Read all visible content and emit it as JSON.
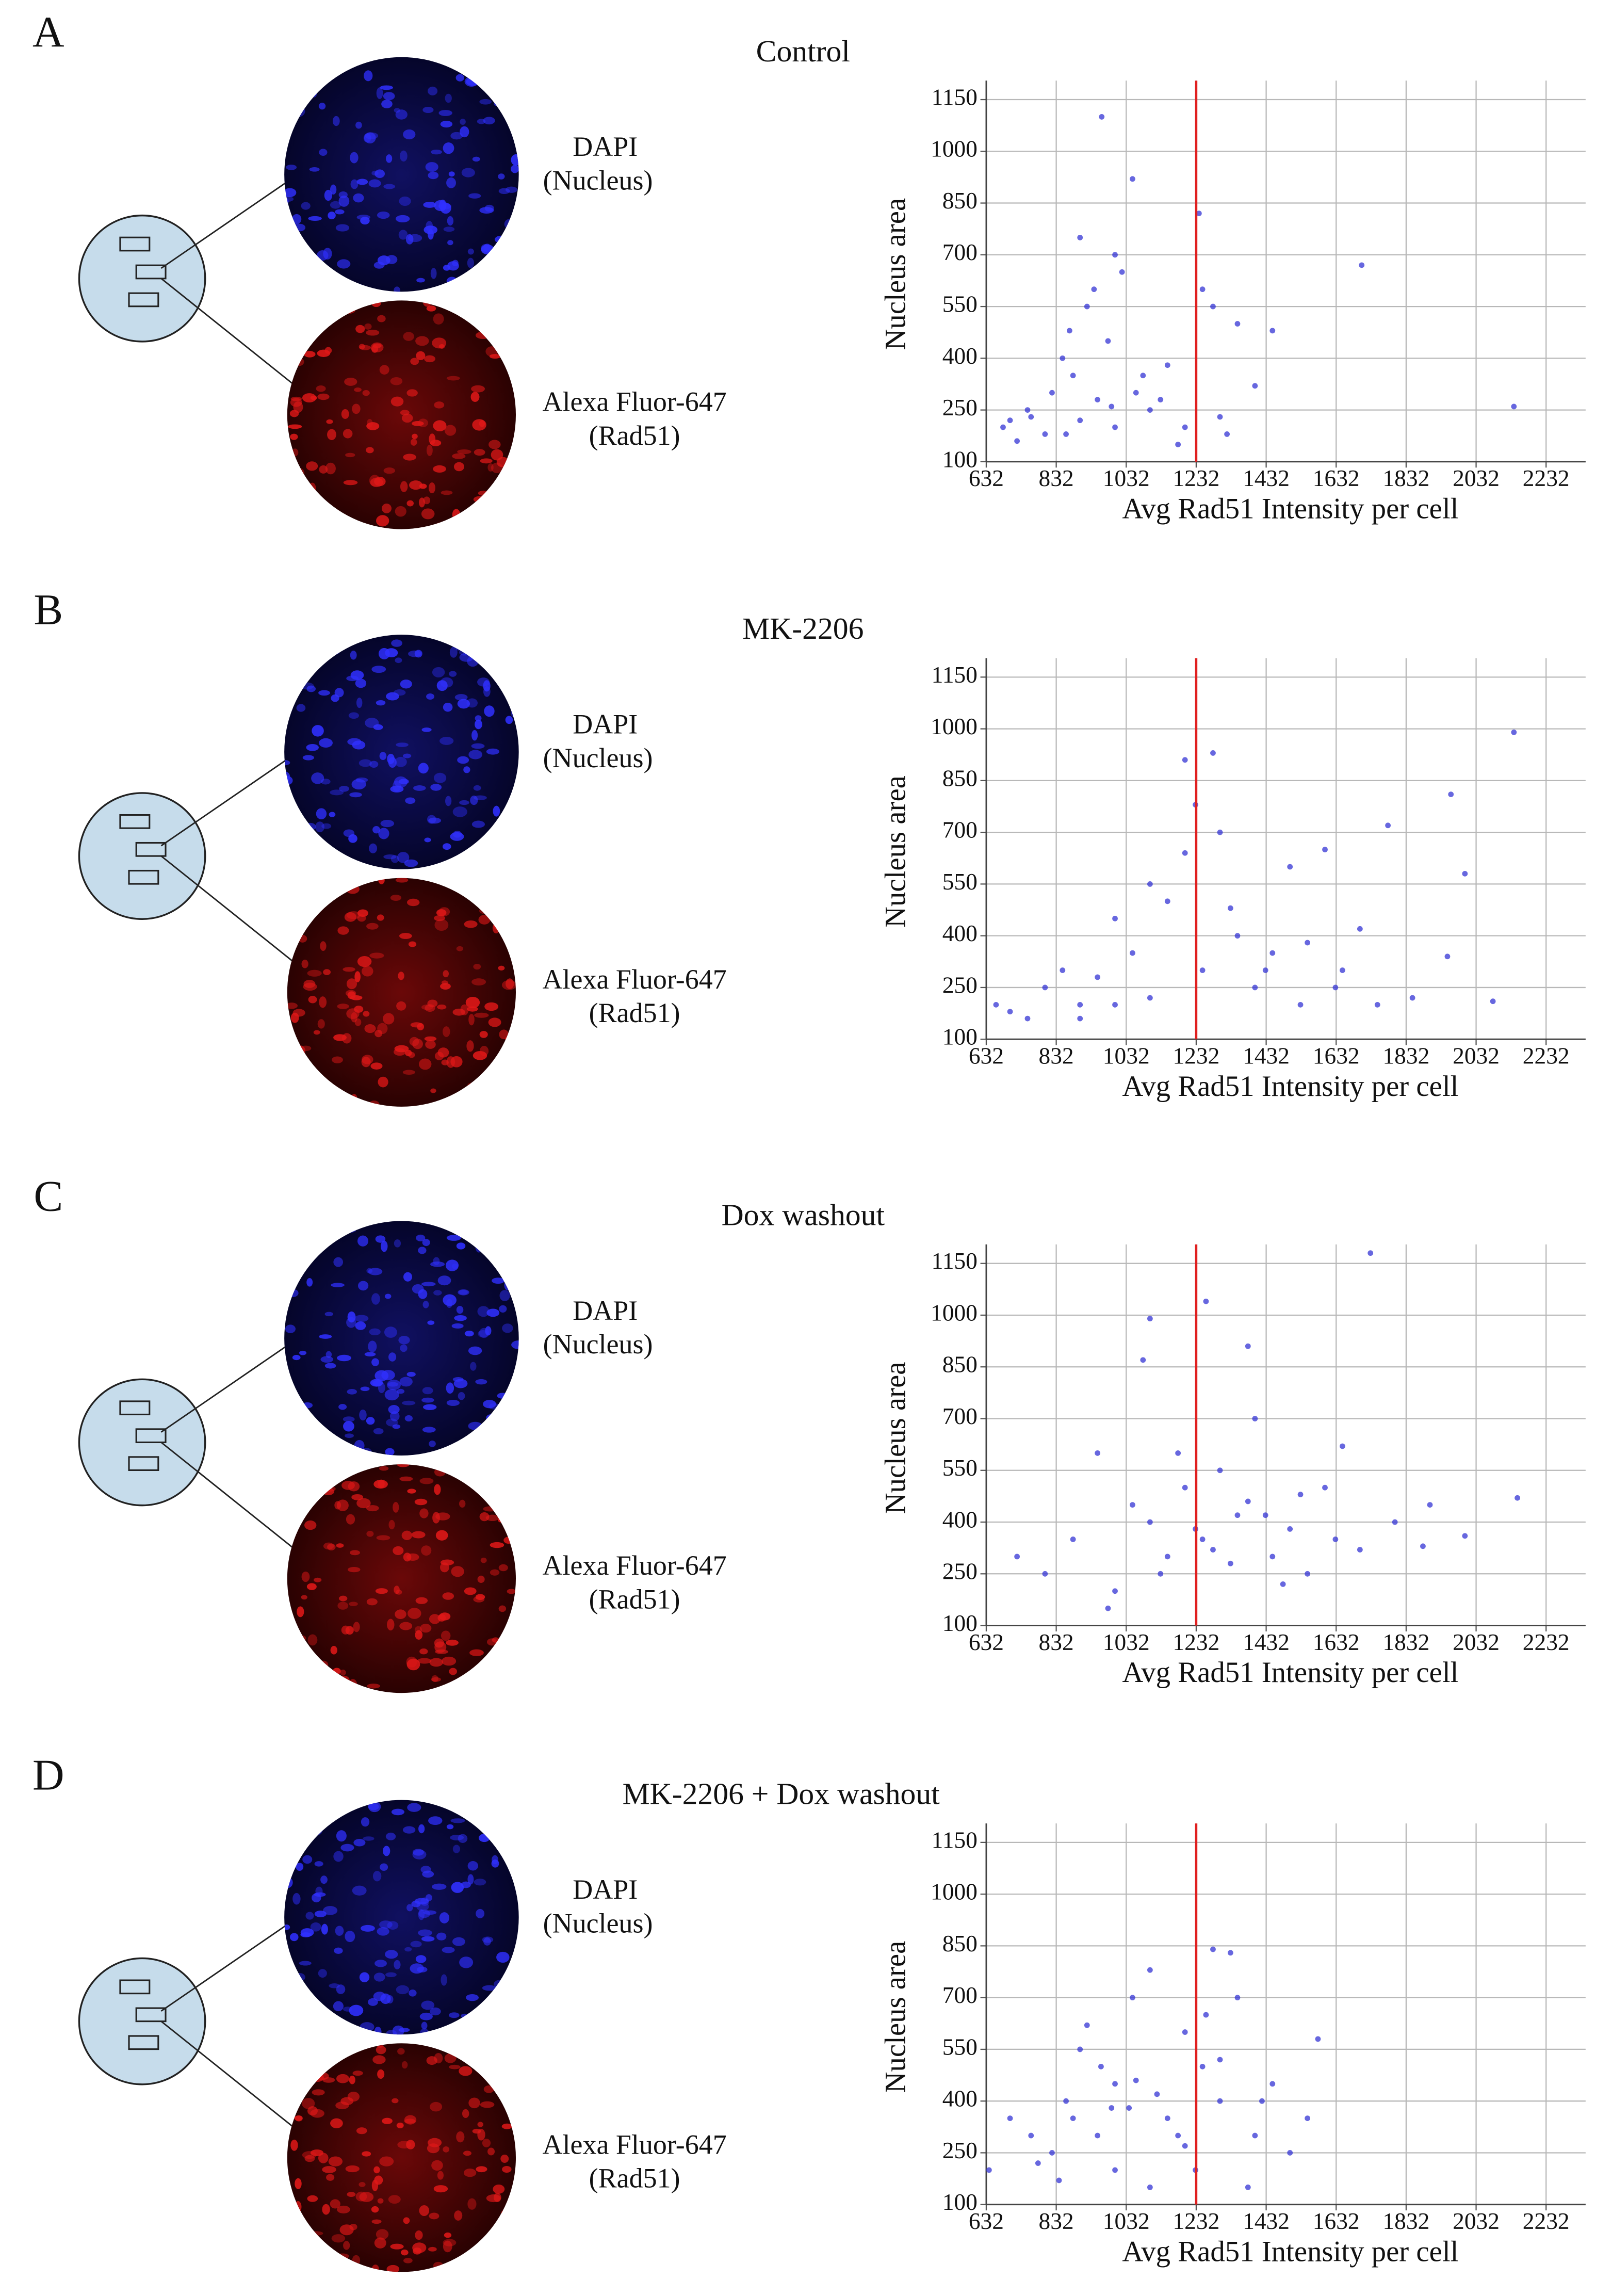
{
  "panels": [
    {
      "letter": "A",
      "dapi": "DAPI",
      "dapi_sub": "(Nucleus)",
      "alexa": "Alexa Fluor-647",
      "alexa_sub": "(Rad51)"
    },
    {
      "letter": "B",
      "dapi": "DAPI",
      "dapi_sub": "(Nucleus)",
      "alexa": "Alexa Fluor-647",
      "alexa_sub": "(Rad51)"
    },
    {
      "letter": "C",
      "dapi": "DAPI",
      "dapi_sub": "(Nucleus)",
      "alexa": "Alexa Fluor-647",
      "alexa_sub": "(Rad51)"
    },
    {
      "letter": "D",
      "dapi": "DAPI",
      "dapi_sub": "(Nucleus)",
      "alexa": "Alexa Fluor-647",
      "alexa_sub": "(Rad51)"
    }
  ],
  "chart_data": [
    {
      "type": "scatter",
      "title": "Control",
      "x_label": "Avg Rad51 Intensity per cell",
      "y_label": "Nucleus area",
      "color": "#3434d4",
      "grid": true,
      "threshold_x": 1232,
      "threshold_color": "#e02020",
      "xlim": [
        632,
        2345
      ],
      "ylim": [
        100,
        1205
      ],
      "xticks": [
        632,
        832,
        1032,
        1232,
        1432,
        1632,
        1832,
        2032,
        2232
      ],
      "yticks": [
        100,
        250,
        400,
        550,
        700,
        850,
        1000,
        1150
      ],
      "x": [
        962,
        1050,
        1705,
        2140,
        1240,
        700,
        750,
        800,
        820,
        850,
        880,
        900,
        920,
        950,
        980,
        1000,
        1020,
        1060,
        1100,
        1150,
        1200,
        1280,
        1350,
        1400,
        1450,
        680,
        720,
        900,
        940,
        1000,
        1080,
        1130,
        760,
        860,
        990,
        1180,
        1300,
        1320,
        1250,
        870
      ],
      "y": [
        1100,
        920,
        670,
        260,
        820,
        220,
        250,
        180,
        300,
        400,
        350,
        220,
        550,
        280,
        450,
        200,
        650,
        300,
        250,
        380,
        200,
        550,
        500,
        320,
        480,
        200,
        160,
        750,
        600,
        700,
        350,
        280,
        230,
        180,
        260,
        150,
        230,
        180,
        600,
        480
      ]
    },
    {
      "type": "scatter",
      "title": "MK-2206",
      "x_label": "Avg Rad51 Intensity per cell",
      "y_label": "Nucleus area",
      "color": "#3434d4",
      "grid": true,
      "threshold_x": 1232,
      "threshold_color": "#e02020",
      "xlim": [
        632,
        2345
      ],
      "ylim": [
        100,
        1205
      ],
      "xticks": [
        632,
        832,
        1032,
        1232,
        1432,
        1632,
        1832,
        2032,
        2232
      ],
      "yticks": [
        100,
        250,
        400,
        550,
        700,
        850,
        1000,
        1150
      ],
      "x": [
        2140,
        1960,
        2000,
        1200,
        1280,
        2080,
        1780,
        660,
        700,
        750,
        800,
        850,
        900,
        950,
        1000,
        1050,
        1100,
        1150,
        1200,
        1250,
        1300,
        1350,
        1400,
        1450,
        1500,
        1550,
        1600,
        1650,
        1700,
        1750,
        1850,
        1950,
        900,
        1000,
        1100,
        1230,
        1330,
        1430,
        1530,
        1630
      ],
      "y": [
        990,
        810,
        580,
        910,
        930,
        210,
        720,
        200,
        180,
        160,
        250,
        300,
        200,
        280,
        450,
        350,
        220,
        500,
        640,
        300,
        700,
        400,
        250,
        350,
        600,
        380,
        650,
        300,
        420,
        200,
        220,
        340,
        160,
        200,
        550,
        780,
        480,
        300,
        200,
        250
      ]
    },
    {
      "type": "scatter",
      "title": "Dox washout",
      "x_label": "Avg Rad51 Intensity per cell",
      "y_label": "Nucleus area",
      "color": "#3434d4",
      "grid": true,
      "threshold_x": 1232,
      "threshold_color": "#e02020",
      "xlim": [
        632,
        2345
      ],
      "ylim": [
        100,
        1205
      ],
      "xticks": [
        632,
        832,
        1032,
        1232,
        1432,
        1632,
        1832,
        2032,
        2232
      ],
      "yticks": [
        100,
        250,
        400,
        550,
        700,
        850,
        1000,
        1150
      ],
      "x": [
        1730,
        1260,
        1100,
        2150,
        1380,
        720,
        800,
        880,
        950,
        1000,
        1050,
        1100,
        1150,
        1200,
        1250,
        1300,
        1350,
        1400,
        1450,
        1500,
        1550,
        1600,
        1650,
        1700,
        1800,
        1900,
        2000,
        1080,
        1180,
        1230,
        1280,
        1330,
        1430,
        1530,
        1630,
        980,
        1130,
        1380,
        1480,
        1880
      ],
      "y": [
        1180,
        1040,
        990,
        470,
        910,
        300,
        250,
        350,
        600,
        200,
        450,
        400,
        300,
        500,
        350,
        550,
        420,
        700,
        300,
        380,
        250,
        500,
        620,
        320,
        400,
        450,
        360,
        870,
        600,
        380,
        320,
        280,
        420,
        480,
        350,
        150,
        250,
        460,
        220,
        330
      ]
    },
    {
      "type": "scatter",
      "title": "MK-2206 + Dox washout",
      "x_label": "Avg Rad51 Intensity per cell",
      "y_label": "Nucleus area",
      "color": "#3434d4",
      "grid": true,
      "threshold_x": 1232,
      "threshold_color": "#e02020",
      "xlim": [
        632,
        2345
      ],
      "ylim": [
        100,
        1205
      ],
      "xticks": [
        632,
        832,
        1032,
        1232,
        1432,
        1632,
        1832,
        2032,
        2232
      ],
      "yticks": [
        100,
        250,
        400,
        550,
        700,
        850,
        1000,
        1150
      ],
      "x": [
        640,
        700,
        760,
        820,
        860,
        900,
        950,
        1000,
        1050,
        1100,
        1150,
        1200,
        1250,
        1280,
        1300,
        1330,
        1350,
        1400,
        1450,
        1500,
        1550,
        1580,
        1000,
        1100,
        1200,
        1260,
        1120,
        1040,
        960,
        880,
        780,
        840,
        920,
        1180,
        1230,
        1420,
        1380,
        1300,
        1060,
        990
      ],
      "y": [
        200,
        350,
        300,
        250,
        400,
        550,
        300,
        450,
        700,
        780,
        350,
        600,
        500,
        840,
        400,
        830,
        700,
        300,
        450,
        250,
        350,
        580,
        200,
        150,
        270,
        650,
        420,
        380,
        500,
        350,
        220,
        170,
        620,
        300,
        200,
        400,
        150,
        520,
        460,
        380
      ]
    }
  ]
}
